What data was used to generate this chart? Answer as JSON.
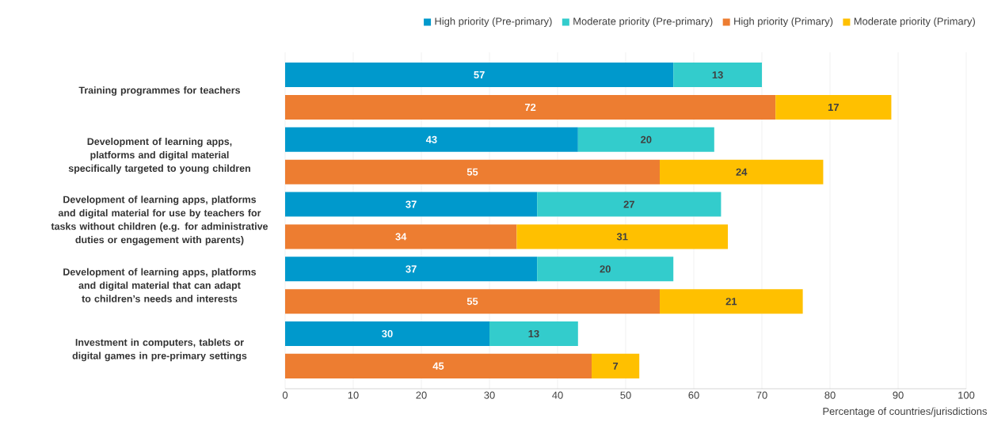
{
  "chart_data": {
    "type": "bar",
    "orientation": "horizontal",
    "stacked": true,
    "xlabel": "Percentage of countries/jurisdictions",
    "categories": [
      "Training programmes for teachers",
      null,
      "Development of learning apps, platforms and digital material specifically targeted to young children",
      null,
      "Development of learning apps, platforms and digital material for use by teachers for tasks without children (e.g. for administrative duties or engagement with parents)",
      null,
      "Development of learning apps, platforms and digital material that can adapt to children’s needs and interests",
      null,
      "Investment in computers, tablets or digital games in pre-primary settings",
      null
    ],
    "series": [
      {
        "name": "High priority (Pre-primary)",
        "color": "#0099cc",
        "values": [
          57,
          null,
          43,
          null,
          37,
          null,
          37,
          null,
          30,
          null
        ]
      },
      {
        "name": "Moderate priority (Pre-primary)",
        "color": "#33cccc",
        "values": [
          13,
          null,
          20,
          null,
          27,
          null,
          20,
          null,
          13,
          null
        ]
      },
      {
        "name": "High priority (Primary)",
        "color": "#ed7d31",
        "values": [
          null,
          72,
          null,
          55,
          null,
          34,
          null,
          55,
          null,
          45
        ]
      },
      {
        "name": "Moderate priority (Primary)",
        "color": "#ffc000",
        "values": [
          null,
          17,
          null,
          24,
          null,
          31,
          null,
          21,
          null,
          7
        ]
      }
    ],
    "xlim": [
      0,
      100
    ],
    "xticks": [
      0,
      10,
      20,
      30,
      40,
      50,
      60,
      70,
      80,
      90,
      100
    ],
    "grid": "x",
    "legend": "top right",
    "data_labels": true
  }
}
